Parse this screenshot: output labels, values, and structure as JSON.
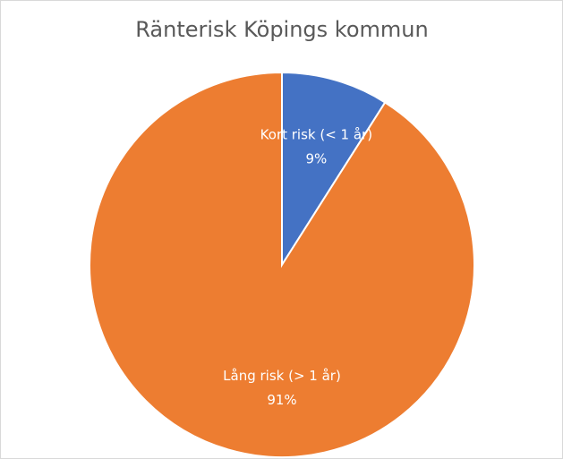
{
  "chart_data": {
    "type": "pie",
    "title": "Ränterisk Köpings kommun",
    "categories": [
      "Kort risk (< 1 år)",
      "Lång risk (> 1 år)"
    ],
    "values": [
      9,
      91
    ],
    "value_labels": [
      "9%",
      "91%"
    ],
    "colors": [
      "#4472c4",
      "#ed7d31"
    ]
  }
}
